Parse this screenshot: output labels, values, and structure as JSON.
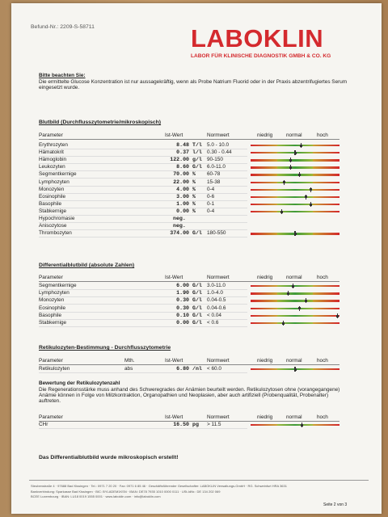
{
  "header": {
    "report_number": "Befund-Nr.: 2209-S-58711",
    "logo": "LABOKLIN",
    "logo_subtitle": "LABOR FÜR KLINISCHE DIAGNOSTIK GMBH & CO. KG"
  },
  "notice": {
    "title": "Bitte beachten Sie:",
    "text": "Die ermittelte Glucose Konzentration ist nur aussagekräftig, wenn als Probe Natrium Fluorid oder in der Praxis abzentrifugiertes Serum eingesetzt wurde."
  },
  "sections": [
    {
      "title": "Blutbild (Durchflusszytometrie/mikroskopisch)",
      "columns": {
        "parameter": "Parameter",
        "value": "Ist-Wert",
        "norm": "Normwert",
        "low": "niedrig",
        "normal": "normal",
        "high": "hoch"
      },
      "rows": [
        {
          "parameter": "Erythrozyten",
          "value": "8.48",
          "unit": "T/l",
          "norm": "5.0 - 10.0"
        },
        {
          "parameter": "Hämatokrit",
          "value": "0.37",
          "unit": "l/l",
          "norm": "0.30 - 0.44"
        },
        {
          "parameter": "Hämoglobin",
          "value": "122.00",
          "unit": "g/l",
          "norm": "90-150"
        },
        {
          "parameter": "Leukozyten",
          "value": "8.60",
          "unit": "G/l",
          "norm": "6.0-11.0"
        },
        {
          "parameter": "Segmentkernige",
          "value": "70.00",
          "unit": "%",
          "norm": "60-78"
        },
        {
          "parameter": "Lymphozyten",
          "value": "22.00",
          "unit": "%",
          "norm": "15-38"
        },
        {
          "parameter": "Monozyten",
          "value": "4.00",
          "unit": "%",
          "norm": "0-4"
        },
        {
          "parameter": "Eosinophile",
          "value": "3.00",
          "unit": "%",
          "norm": "0-6"
        },
        {
          "parameter": "Basophile",
          "value": "1.00",
          "unit": "%",
          "norm": "0-1"
        },
        {
          "parameter": "Stabkernige",
          "value": "0.00",
          "unit": "%",
          "norm": "0-4"
        },
        {
          "parameter": "Hypochromasie",
          "value": "neg."
        },
        {
          "parameter": "Anisozytose",
          "value": "neg."
        },
        {
          "parameter": "Thrombozyten",
          "value": "374.00",
          "unit": "G/l",
          "norm": "180-550"
        }
      ]
    },
    {
      "title": "Differentialblutbild (absolute Zahlen)",
      "columns": {
        "parameter": "Parameter",
        "value": "Ist-Wert",
        "norm": "Normwert",
        "low": "niedrig",
        "normal": "normal",
        "high": "hoch"
      },
      "rows": [
        {
          "parameter": "Segmentkernige",
          "value": "6.00",
          "unit": "G/l",
          "norm": "3.0-11.0"
        },
        {
          "parameter": "Lymphozyten",
          "value": "1.90",
          "unit": "G/l",
          "norm": "1.0-4.0"
        },
        {
          "parameter": "Monozyten",
          "value": "0.30",
          "unit": "G/l",
          "norm": "0.04-0.5"
        },
        {
          "parameter": "Eosinophile",
          "value": "0.30",
          "unit": "G/l",
          "norm": "0.04-0.6"
        },
        {
          "parameter": "Basophile",
          "value": "0.10",
          "unit": "G/l",
          "norm": "< 0.04"
        },
        {
          "parameter": "Stabkernige",
          "value": "0.00",
          "unit": "G/l",
          "norm": "< 0.6"
        }
      ]
    },
    {
      "title": "Retikulozyten-Bestimmung - Durchflusszytometrie",
      "columns": {
        "parameter": "Parameter",
        "method": "Mth.",
        "value": "Ist-Wert",
        "norm": "Normwert",
        "low": "niedrig",
        "normal": "normal",
        "high": "hoch"
      },
      "rows": [
        {
          "parameter": "Retikulozyten",
          "method": "abs",
          "value": "6.80",
          "unit": "/nl",
          "norm": "< 60.0"
        }
      ]
    },
    {
      "columns": {
        "parameter": "Parameter",
        "value": "Ist-Wert",
        "norm": "Normwert",
        "low": "niedrig",
        "normal": "normal",
        "high": "hoch"
      },
      "rows": [
        {
          "parameter": "CHr",
          "value": "16.50",
          "unit": "pg",
          "norm": "> 11.5"
        }
      ]
    }
  ],
  "assessment": {
    "title": "Bewertung der Retikulozytenzahl",
    "text": "Die Regenerationsstärke muss anhand des Schweregrades der Anämien beurteilt werden. Retikulozytosen ohne (vorangegangene) Anämie können in Folge von Milzkontraktion, Organopathien und Neoplasien, aber auch artifiziell (Probenqualität, Probenalter) auftreten."
  },
  "final_note": "Das Differentialblutbild wurde mikroskopisch erstellt!",
  "footer": {
    "lines": [
      "Steubenstraße 4 · 97688 Bad Kissingen · Tel.: 0971 7 20 20 · Fax: 0971 6 85 46 · Geschäftsführender Gesellschafter: LABOKLIN Verwaltungs-GmbH · RG. Schweinfurt HRA 3631",
      "Bankverbindung: Sparkasse Bad Kissingen · BIC: BYLADEM1KSN · IBAN: DE78 7935 1010 0000 0111 · USt-IdNr.: DE 134 202 069",
      "BCEE Luxembourg · IBAN: LU18 0019 1555 0001 · www.laboklin.com · info@laboklin.com"
    ],
    "page": "Seite 2 von 3"
  }
}
